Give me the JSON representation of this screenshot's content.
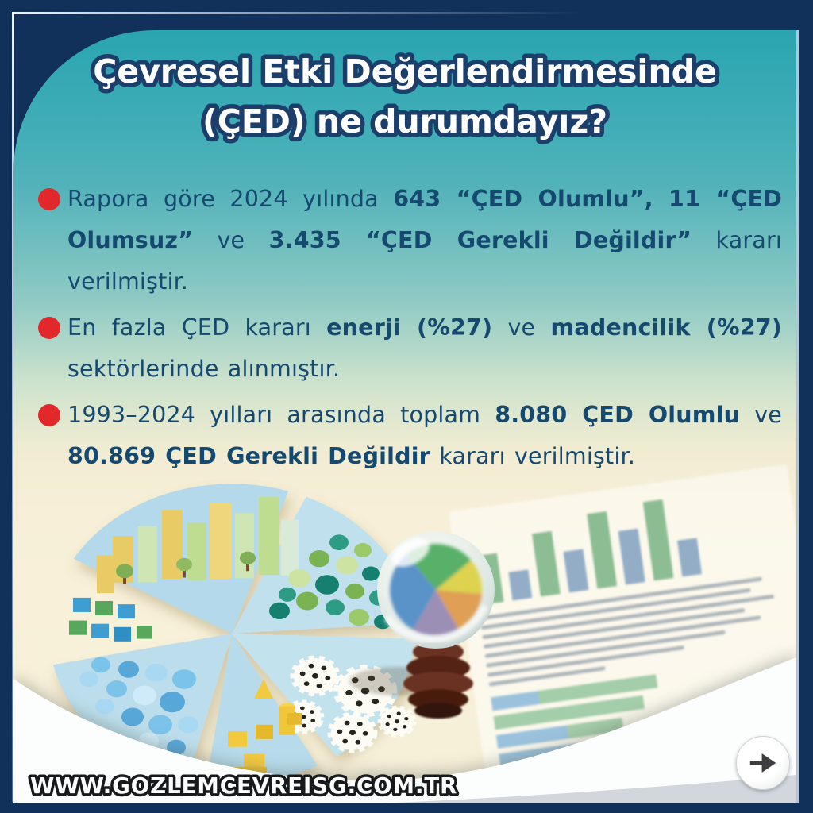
{
  "title": {
    "line1": "Çevresel Etki Değerlendirmesinde",
    "line2": "(ÇED) ne durumdayız?"
  },
  "bullets": [
    {
      "segments": [
        {
          "text": "Rapora göre 2024 yılında ",
          "bold": false
        },
        {
          "text": "643 “ÇED Olumlu”, 11 “ÇED Olumsuz”",
          "bold": true
        },
        {
          "text": " ve ",
          "bold": false
        },
        {
          "text": "3.435 “ÇED Gerekli Değildir”",
          "bold": true
        },
        {
          "text": " kararı verilmiştir.",
          "bold": false
        }
      ]
    },
    {
      "segments": [
        {
          "text": "En fazla ÇED kararı ",
          "bold": false
        },
        {
          "text": "enerji (%27)",
          "bold": true
        },
        {
          "text": " ve ",
          "bold": false
        },
        {
          "text": "madencilik (%27)",
          "bold": true
        },
        {
          "text": " sektörlerinde alınmıştır.",
          "bold": false
        }
      ]
    },
    {
      "segments": [
        {
          "text": "1993–2024 yılları arasında toplam ",
          "bold": false
        },
        {
          "text": "8.080 ÇED Olumlu",
          "bold": true
        },
        {
          "text": " ve ",
          "bold": false
        },
        {
          "text": "80.869 ÇED Gerekli Değildir",
          "bold": true
        },
        {
          "text": " kararı verilmiştir.",
          "bold": false
        }
      ]
    }
  ],
  "footer": {
    "url": "WWW.GOZLEMCEVREISG.COM.TR"
  },
  "next_button": {
    "icon": "arrow-right-icon"
  },
  "colors": {
    "frame_navy": "#11315a",
    "teal_top": "#2aa5b1",
    "cream": "#f6efd8",
    "bullet_red": "#e3282b",
    "text_navy": "#15496f",
    "title_fill": "#ffffff",
    "title_outline": "#1c3e6a",
    "wave_white": "#fcfdfd"
  }
}
